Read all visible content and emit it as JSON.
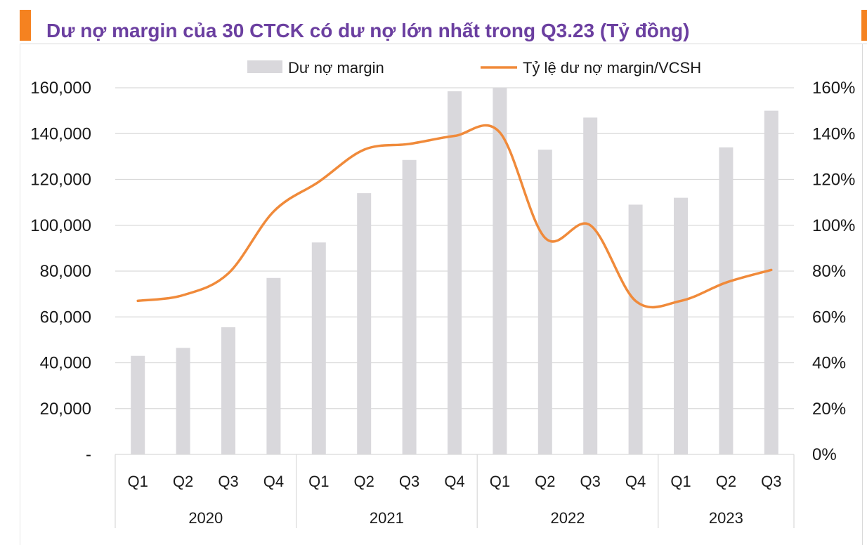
{
  "title": "Dư nợ margin của 30 CTCK có dư nợ lớn nhất trong Q3.23 (Tỷ đồng)",
  "colors": {
    "bar": "#d9d8dc",
    "line": "#f08a3a",
    "title": "#6b3fa0",
    "accent": "#f58220",
    "grid": "#d9d9d9",
    "text": "#1a1a1a"
  },
  "chart_data": {
    "type": "bar+line",
    "title": "Dư nợ margin của 30 CTCK có dư nợ lớn nhất trong Q3.23 (Tỷ đồng)",
    "categories": [
      "Q1",
      "Q2",
      "Q3",
      "Q4",
      "Q1",
      "Q2",
      "Q3",
      "Q4",
      "Q1",
      "Q2",
      "Q3",
      "Q4",
      "Q1",
      "Q2",
      "Q3"
    ],
    "groups": [
      {
        "label": "2020",
        "count": 4
      },
      {
        "label": "2021",
        "count": 4
      },
      {
        "label": "2022",
        "count": 4
      },
      {
        "label": "2023",
        "count": 3
      }
    ],
    "series": [
      {
        "name": "Dư nợ margin",
        "type": "bar",
        "axis": "left",
        "values": [
          43000,
          46500,
          55500,
          77000,
          92500,
          114000,
          128500,
          158500,
          160000,
          133000,
          147000,
          109000,
          112000,
          134000,
          150000
        ]
      },
      {
        "name": "Tỷ lệ dư nợ margin/VCSH",
        "type": "line",
        "axis": "right",
        "values": [
          67,
          69.5,
          79,
          106,
          119,
          133,
          135.5,
          139,
          140.5,
          94.5,
          100,
          67,
          67,
          75,
          80.5
        ]
      }
    ],
    "y_left": {
      "min": 0,
      "max": 160000,
      "ticks": [
        "-",
        "20,000",
        "40,000",
        "60,000",
        "80,000",
        "100,000",
        "120,000",
        "140,000",
        "160,000"
      ]
    },
    "y_right": {
      "min": 0,
      "max": 160,
      "ticks": [
        "0%",
        "20%",
        "40%",
        "60%",
        "80%",
        "100%",
        "120%",
        "140%",
        "160%"
      ]
    },
    "legend_position": "top-center",
    "grid": true
  }
}
